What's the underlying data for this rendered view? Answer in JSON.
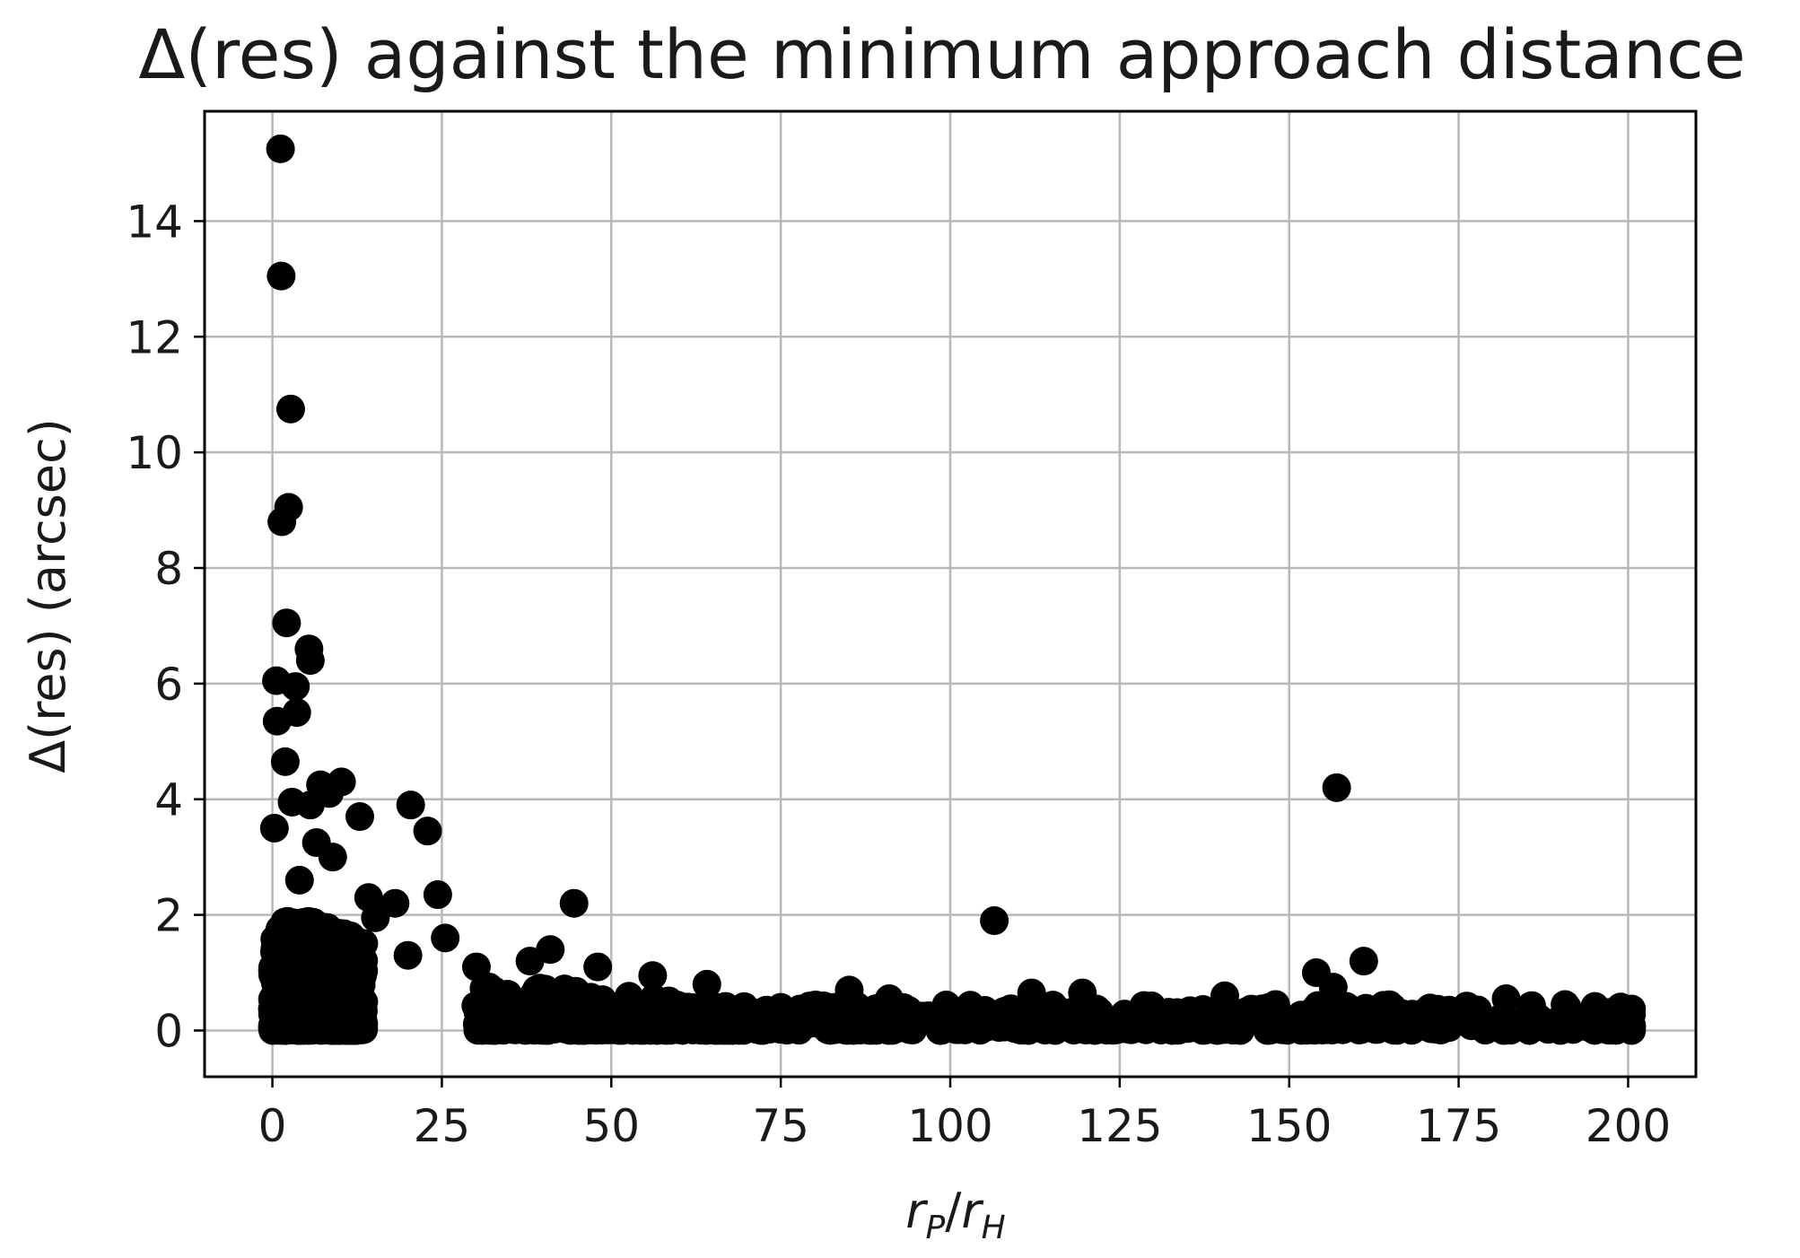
{
  "chart_data": {
    "type": "scatter",
    "title": "Δ(res) against the minimum approach distance",
    "xlabel_parts": [
      "r",
      "P",
      "/",
      "r",
      "H"
    ],
    "ylabel": "Δ(res) (arcsec)",
    "xlim": [
      -10,
      210
    ],
    "ylim": [
      -0.8,
      15.9
    ],
    "xticks": [
      0,
      25,
      50,
      75,
      100,
      125,
      150,
      175,
      200
    ],
    "yticks": [
      0,
      2,
      4,
      6,
      8,
      10,
      12,
      14
    ],
    "grid": true,
    "legend": "none",
    "marker_color": "#000000",
    "series": [
      {
        "points": [
          [
            1.2,
            15.25
          ],
          [
            1.3,
            13.05
          ],
          [
            2.7,
            10.75
          ],
          [
            2.4,
            9.05
          ],
          [
            1.4,
            8.8
          ],
          [
            2.1,
            7.05
          ],
          [
            5.4,
            6.6
          ],
          [
            5.6,
            6.4
          ],
          [
            0.6,
            6.05
          ],
          [
            3.4,
            5.95
          ],
          [
            3.6,
            5.5
          ],
          [
            0.7,
            5.35
          ],
          [
            1.9,
            4.65
          ],
          [
            7.1,
            4.25
          ],
          [
            8.4,
            4.1
          ],
          [
            10.2,
            4.3
          ],
          [
            5.6,
            3.9
          ],
          [
            2.9,
            3.95
          ],
          [
            0.3,
            3.5
          ],
          [
            12.9,
            3.7
          ],
          [
            20.4,
            3.9
          ],
          [
            22.9,
            3.45
          ],
          [
            6.5,
            3.25
          ],
          [
            8.9,
            3.0
          ],
          [
            24.4,
            2.35
          ],
          [
            44.5,
            2.2
          ],
          [
            4.0,
            2.6
          ],
          [
            14.2,
            2.3
          ],
          [
            18.1,
            2.2
          ],
          [
            15.2,
            1.95
          ],
          [
            1.1,
            1.75
          ],
          [
            10.1,
            1.6
          ],
          [
            25.5,
            1.6
          ],
          [
            20.0,
            1.3
          ],
          [
            30.1,
            1.1
          ],
          [
            38.0,
            1.2
          ],
          [
            41.0,
            1.4
          ],
          [
            48.0,
            1.1
          ],
          [
            56.1,
            0.95
          ],
          [
            64.1,
            0.8
          ],
          [
            106.5,
            1.9
          ],
          [
            154.0,
            1.0
          ],
          [
            156.5,
            0.75
          ],
          [
            157.0,
            4.2
          ],
          [
            161.0,
            1.2
          ],
          [
            85.1,
            0.7
          ],
          [
            91.0,
            0.55
          ],
          [
            112.0,
            0.65
          ],
          [
            119.5,
            0.65
          ],
          [
            140.5,
            0.6
          ],
          [
            148.0,
            0.45
          ],
          [
            166.0,
            0.3
          ],
          [
            182.0,
            0.55
          ],
          [
            191.0,
            0.4
          ],
          [
            198.0,
            0.3
          ],
          [
            200.5,
            0.0
          ],
          [
            170.0,
            0.15
          ],
          [
            130.0,
            0.2
          ],
          [
            75.0,
            0.4
          ]
        ]
      }
    ]
  }
}
